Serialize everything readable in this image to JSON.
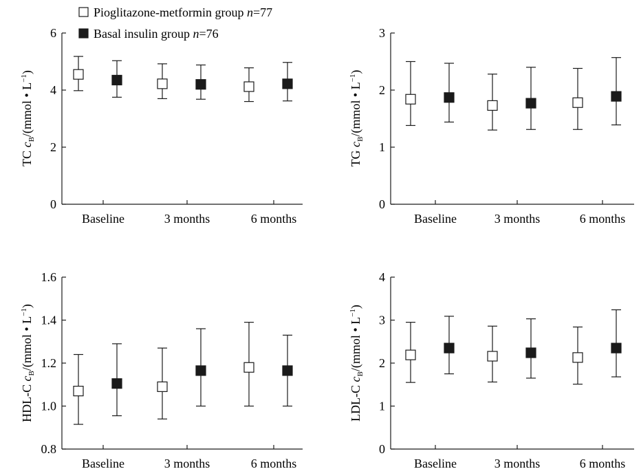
{
  "legend": [
    {
      "name": "Pioglitazone-metformin group",
      "n_label": "n",
      "n_value": "=77",
      "marker": "open-square"
    },
    {
      "name": "Basal insulin group",
      "n_label": "n",
      "n_value": "=76",
      "marker": "filled-square"
    }
  ],
  "colors": {
    "ink": "#1a1a1a",
    "open_fill": "#ffffff",
    "filled_fill": "#1a1a1a"
  },
  "chart_data": [
    {
      "type": "scatter",
      "id": "tc",
      "ylabel": {
        "prefix": "TC ",
        "var": "c",
        "sub": "B",
        "unit": "/(mmol • L",
        "sup": "−1",
        "close": ")"
      },
      "categories": [
        "Baseline",
        "3 months",
        "6 months"
      ],
      "ylim": [
        0,
        6
      ],
      "yticks": [
        0,
        2,
        4,
        6
      ],
      "ytick_labels": [
        "0",
        "2",
        "4",
        "6"
      ],
      "series": [
        {
          "name": "Pioglitazone-metformin group",
          "values": [
            4.55,
            4.22,
            4.12
          ],
          "err_low": [
            3.98,
            3.7,
            3.6
          ],
          "err_high": [
            5.18,
            4.92,
            4.78
          ]
        },
        {
          "name": "Basal insulin group",
          "values": [
            4.35,
            4.2,
            4.22
          ],
          "err_low": [
            3.75,
            3.68,
            3.62
          ],
          "err_high": [
            5.03,
            4.88,
            4.97
          ]
        }
      ]
    },
    {
      "type": "scatter",
      "id": "tg",
      "ylabel": {
        "prefix": "TG ",
        "var": "c",
        "sub": "B",
        "unit": "/(mmol • L",
        "sup": "−1",
        "close": ")"
      },
      "categories": [
        "Baseline",
        "3 months",
        "6 months"
      ],
      "ylim": [
        0,
        3
      ],
      "yticks": [
        0,
        1,
        2,
        3
      ],
      "ytick_labels": [
        "0",
        "1",
        "2",
        "3"
      ],
      "series": [
        {
          "name": "Pioglitazone-metformin group",
          "values": [
            1.84,
            1.73,
            1.78
          ],
          "err_low": [
            1.38,
            1.3,
            1.31
          ],
          "err_high": [
            2.5,
            2.28,
            2.38
          ]
        },
        {
          "name": "Basal insulin group",
          "values": [
            1.87,
            1.77,
            1.89
          ],
          "err_low": [
            1.44,
            1.31,
            1.39
          ],
          "err_high": [
            2.47,
            2.4,
            2.57
          ]
        }
      ]
    },
    {
      "type": "scatter",
      "id": "hdl",
      "ylabel": {
        "prefix": "HDL-C ",
        "var": "c",
        "sub": "B",
        "unit": "/(mmol • L",
        "sup": "−1",
        "close": ")"
      },
      "categories": [
        "Baseline",
        "3 months",
        "6 months"
      ],
      "ylim": [
        0.8,
        1.6
      ],
      "yticks": [
        0.8,
        1.0,
        1.2,
        1.4,
        1.6
      ],
      "ytick_labels": [
        "0.8",
        "1.0",
        "1.2",
        "1.4",
        "1.6"
      ],
      "series": [
        {
          "name": "Pioglitazone-metformin group",
          "values": [
            1.07,
            1.09,
            1.18
          ],
          "err_low": [
            0.915,
            0.94,
            1.0
          ],
          "err_high": [
            1.24,
            1.27,
            1.39
          ]
        },
        {
          "name": "Basal insulin group",
          "values": [
            1.105,
            1.165,
            1.165
          ],
          "err_low": [
            0.955,
            1.0,
            1.0
          ],
          "err_high": [
            1.29,
            1.36,
            1.33
          ]
        }
      ]
    },
    {
      "type": "scatter",
      "id": "ldl",
      "ylabel": {
        "prefix": "LDL-C ",
        "var": "c",
        "sub": "B",
        "unit": "/(mmol • L",
        "sup": "−1",
        "close": ")"
      },
      "categories": [
        "Baseline",
        "3 months",
        "6 months"
      ],
      "ylim": [
        0,
        4
      ],
      "yticks": [
        0,
        1,
        2,
        3,
        4
      ],
      "ytick_labels": [
        "0",
        "1",
        "2",
        "3",
        "4"
      ],
      "series": [
        {
          "name": "Pioglitazone-metformin group",
          "values": [
            2.19,
            2.16,
            2.13
          ],
          "err_low": [
            1.55,
            1.56,
            1.51
          ],
          "err_high": [
            2.95,
            2.86,
            2.84
          ]
        },
        {
          "name": "Basal insulin group",
          "values": [
            2.35,
            2.24,
            2.35
          ],
          "err_low": [
            1.75,
            1.65,
            1.68
          ],
          "err_high": [
            3.09,
            3.03,
            3.24
          ]
        }
      ]
    }
  ]
}
